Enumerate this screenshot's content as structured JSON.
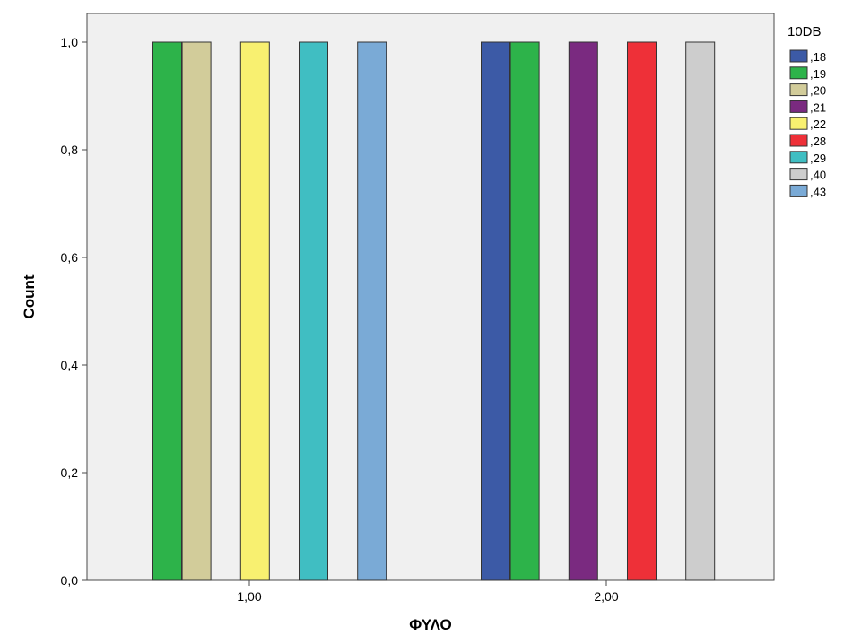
{
  "chart_data": {
    "type": "bar",
    "title": "",
    "xlabel": "ΦΥΛΟ",
    "ylabel": "Count",
    "ylim": [
      0,
      1
    ],
    "y_ticks": [
      "0,0",
      "0,2",
      "0,4",
      "0,6",
      "0,8",
      "1,0"
    ],
    "categories": [
      "1,00",
      "2,00"
    ],
    "legend_title": "10DB",
    "legend_position": "right",
    "grid": false,
    "plot_background": "#f0f0f0",
    "series": [
      {
        "name": ",18",
        "color": "#3c5aa6",
        "values": [
          null,
          1
        ]
      },
      {
        "name": ",19",
        "color": "#2db34a",
        "values": [
          1,
          1
        ]
      },
      {
        "name": ",20",
        "color": "#d2cc9a",
        "values": [
          1,
          null
        ]
      },
      {
        "name": ",21",
        "color": "#7a2a80",
        "values": [
          null,
          1
        ]
      },
      {
        "name": ",22",
        "color": "#f8f070",
        "values": [
          1,
          null
        ]
      },
      {
        "name": ",28",
        "color": "#ee3038",
        "values": [
          null,
          1
        ]
      },
      {
        "name": ",29",
        "color": "#40bec2",
        "values": [
          1,
          null
        ]
      },
      {
        "name": ",40",
        "color": "#cdcdcd",
        "values": [
          null,
          1
        ]
      },
      {
        "name": ",43",
        "color": "#7aaad6",
        "values": [
          1,
          null
        ]
      }
    ]
  }
}
